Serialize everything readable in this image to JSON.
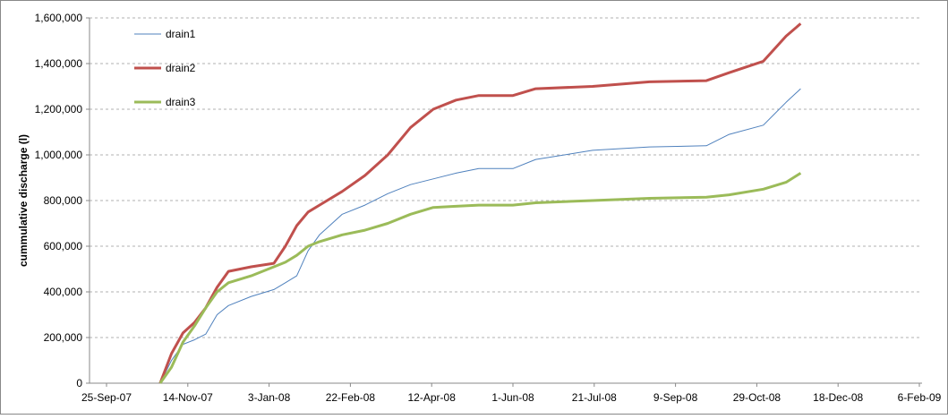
{
  "chart_data": {
    "type": "line",
    "y_label": "cummulative discharge (l)",
    "x": [
      "2007-10-28",
      "2007-11-04",
      "2007-11-11",
      "2007-11-18",
      "2007-11-25",
      "2007-12-02",
      "2007-12-09",
      "2007-12-23",
      "2008-01-06",
      "2008-01-13",
      "2008-01-20",
      "2008-01-27",
      "2008-02-03",
      "2008-02-17",
      "2008-03-02",
      "2008-03-16",
      "2008-03-30",
      "2008-04-13",
      "2008-04-27",
      "2008-05-11",
      "2008-06-01",
      "2008-06-15",
      "2008-07-20",
      "2008-08-24",
      "2008-09-28",
      "2008-10-12",
      "2008-11-02",
      "2008-11-16",
      "2008-11-25"
    ],
    "series": [
      {
        "name": "drain1",
        "color": "#4f81bd",
        "width": 1,
        "values": [
          0,
          100000,
          170000,
          190000,
          215000,
          300000,
          340000,
          380000,
          410000,
          440000,
          470000,
          580000,
          650000,
          740000,
          780000,
          830000,
          870000,
          895000,
          920000,
          940000,
          940000,
          980000,
          1020000,
          1035000,
          1040000,
          1090000,
          1130000,
          1230000,
          1290000
        ]
      },
      {
        "name": "drain2",
        "color": "#c0504d",
        "width": 3,
        "values": [
          0,
          130000,
          220000,
          265000,
          330000,
          420000,
          490000,
          510000,
          525000,
          600000,
          690000,
          750000,
          780000,
          840000,
          910000,
          1000000,
          1120000,
          1200000,
          1240000,
          1260000,
          1260000,
          1290000,
          1300000,
          1320000,
          1325000,
          1360000,
          1410000,
          1520000,
          1575000
        ]
      },
      {
        "name": "drain3",
        "color": "#9bbb59",
        "width": 3,
        "values": [
          0,
          70000,
          180000,
          250000,
          330000,
          400000,
          440000,
          470000,
          510000,
          530000,
          560000,
          600000,
          620000,
          650000,
          670000,
          700000,
          740000,
          770000,
          775000,
          780000,
          780000,
          790000,
          800000,
          810000,
          815000,
          825000,
          850000,
          880000,
          920000
        ]
      }
    ],
    "xlim": [
      "2007-09-25",
      "2009-02-06"
    ],
    "xticks": [
      {
        "value": "2007-09-25",
        "label": "25-Sep-07"
      },
      {
        "value": "2007-11-14",
        "label": "14-Nov-07"
      },
      {
        "value": "2008-01-03",
        "label": "3-Jan-08"
      },
      {
        "value": "2008-02-22",
        "label": "22-Feb-08"
      },
      {
        "value": "2008-04-12",
        "label": "12-Apr-08"
      },
      {
        "value": "2008-06-01",
        "label": "1-Jun-08"
      },
      {
        "value": "2008-07-21",
        "label": "21-Jul-08"
      },
      {
        "value": "2008-09-09",
        "label": "9-Sep-08"
      },
      {
        "value": "2008-10-29",
        "label": "29-Oct-08"
      },
      {
        "value": "2008-12-18",
        "label": "18-Dec-08"
      },
      {
        "value": "2009-02-06",
        "label": "6-Feb-09"
      }
    ],
    "ylim": [
      0,
      1600000
    ],
    "yticks": [
      0,
      {
        "value": 200000,
        "label": "200,000"
      },
      {
        "value": 400000,
        "label": "400,000"
      },
      {
        "value": 600000,
        "label": "600,000"
      },
      {
        "value": 800000,
        "label": "800,000"
      },
      {
        "value": 1000000,
        "label": "1,000,000"
      },
      {
        "value": 1200000,
        "label": "1,200,000"
      },
      {
        "value": 1400000,
        "label": "1,400,000"
      },
      {
        "value": 1600000,
        "label": "1,600,000"
      }
    ],
    "grid": true,
    "legend": "top-left"
  }
}
